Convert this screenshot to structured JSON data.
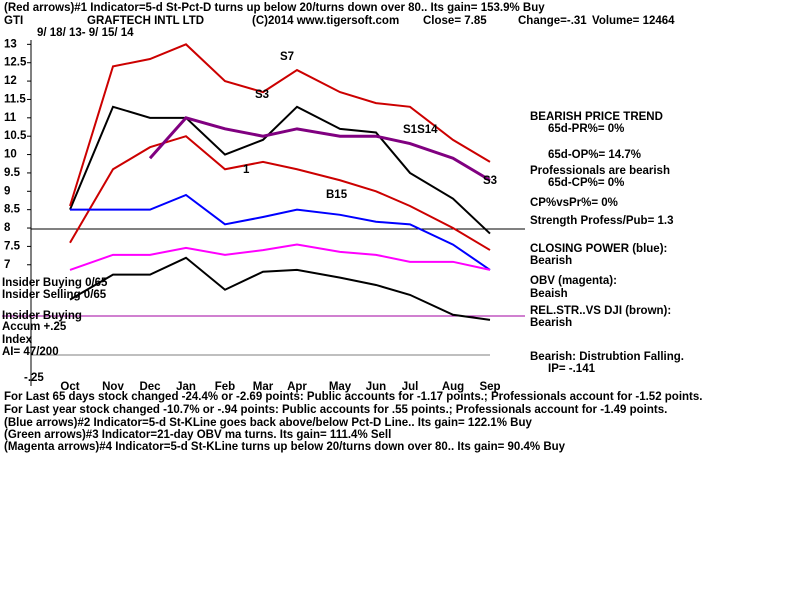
{
  "chart_data": {
    "type": "line",
    "title": "(Red arrows)#1 Indicator=5-d St-Pct-D turns up below 20/turns down over 80.. Its gain= 153.9% Buy",
    "ticker": "GTI",
    "company": "GRAFTECH INTL LTD",
    "source": "(C)2014 www.tigersoft.com",
    "close": "Close=  7.85",
    "change": "Change=-.31",
    "volume": "Volume= 12464",
    "date_range": "9/ 18/ 13- 9/ 15/ 14",
    "categories": [
      "Oct",
      "Nov",
      "Dec",
      "Jan",
      "Feb",
      "Mar",
      "Apr",
      "May",
      "Jun",
      "Jul",
      "Aug",
      "Sep"
    ],
    "series": [
      {
        "color": "#000000",
        "values": [
          8.5,
          11.3,
          11.0,
          11.0,
          10.0,
          10.4,
          11.3,
          10.7,
          10.6,
          9.5,
          8.8,
          7.85
        ]
      },
      {
        "color": "#cc0000",
        "values": [
          8.6,
          12.4,
          12.6,
          13.0,
          12.0,
          11.7,
          12.3,
          11.7,
          11.4,
          11.3,
          10.4,
          9.8
        ]
      },
      {
        "color": "#cc0000",
        "values": [
          7.6,
          9.6,
          10.2,
          10.5,
          9.6,
          9.8,
          9.6,
          9.3,
          9.0,
          8.6,
          8.0,
          7.4
        ]
      },
      {
        "color": "#800080",
        "values": [
          null,
          null,
          9.9,
          11.0,
          10.7,
          10.5,
          10.7,
          10.5,
          10.5,
          10.3,
          9.9,
          9.3
        ]
      },
      {
        "color": "#0000ff",
        "values": [
          8.5,
          8.5,
          8.5,
          8.9,
          8.1,
          8.3,
          8.5,
          8.36,
          8.17,
          8.1,
          7.55,
          6.86
        ]
      },
      {
        "color": "#ff00ff",
        "values": [
          6.86,
          7.27,
          7.27,
          7.46,
          7.27,
          7.4,
          7.55,
          7.35,
          7.27,
          7.08,
          7.08,
          6.86
        ]
      },
      {
        "color": "#000000",
        "values": [
          6.05,
          6.73,
          6.73,
          7.19,
          6.32,
          6.81,
          6.86,
          6.65,
          6.45,
          6.18,
          5.64,
          5.5
        ]
      }
    ],
    "ylim": [
      3.7,
      13.2
    ],
    "yticks": [
      7,
      7.5,
      8,
      8.5,
      9,
      9.5,
      10,
      10.5,
      11,
      11.5,
      12,
      12.5,
      13
    ],
    "annotations": [
      "S7",
      "S3",
      "S1S14",
      "S3",
      "B15",
      "1",
      "Insider Buying 0/65",
      "Insider Selling 0/65",
      "Insider Buying",
      "Accum  +.25",
      "Index",
      "AI= 47/200",
      "-.25",
      "BEARISH PRICE TREND",
      "65d-PR%= 0%",
      "65d-OP%= 14.7%",
      "Professionals are bearish",
      "65d-CP%= 0%",
      "CP%vsPr%=  0%",
      "Strength Profess/Pub= 1.3",
      "CLOSING POWER (blue):",
      "Bearish",
      "OBV (magenta):",
      "Beaish",
      "REL.STR..VS DJI (brown):",
      "Bearish",
      "Bearish: Distrubtion Falling.",
      "IP= -.141",
      "For Last 65 days stock changed -24.4% or -2.69 points:  Public accounts for -1.17 points.;  Professionals account for -1.52 points.",
      "For Last year stock changed -10.7% or -.94 points:  Public accounts for  .55 points.;  Professionals account for -1.49 points.",
      "(Blue arrows)#2 Indicator=5-d St-KLine goes back above/below Pct-D Line.. Its gain= 122.1% Buy",
      "(Green arrows)#3 Indicator=21-day OBV ma turns. Its gain= 111.4% Sell",
      "(Magenta arrows)#4 Indicator=5-d St-KLine turns up below 20/turns down over 80.. Its gain= 90.4% Buy"
    ]
  }
}
